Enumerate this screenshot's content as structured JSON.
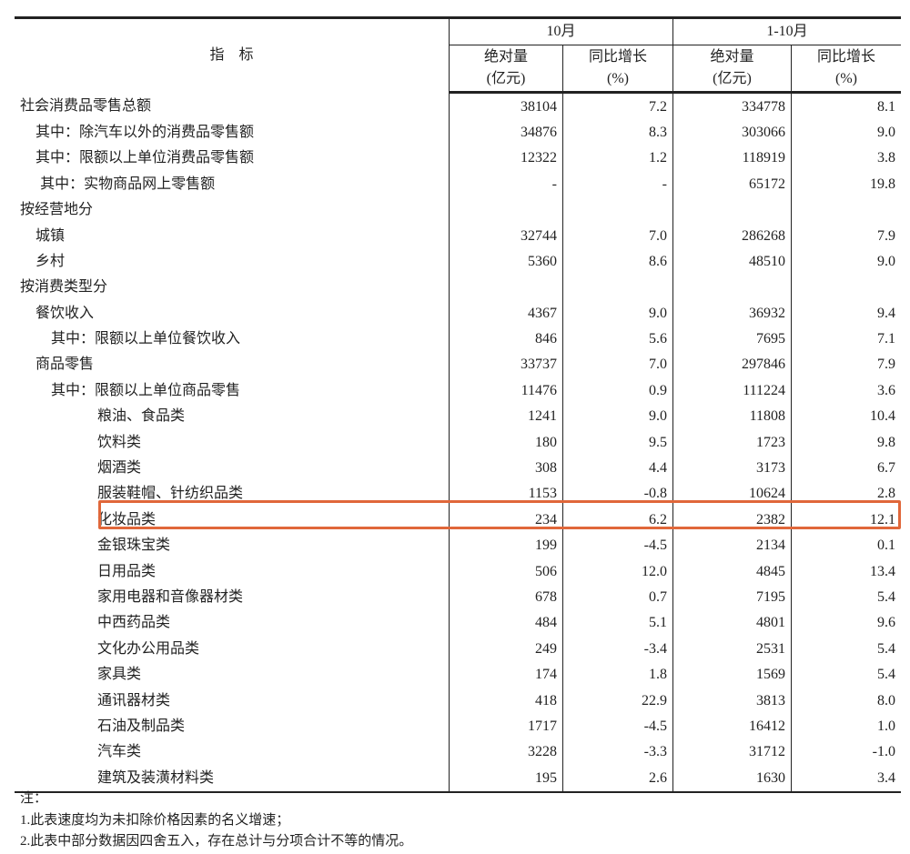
{
  "header": {
    "indicator": "指　标",
    "period1": "10月",
    "period2": "1-10月",
    "abs": "绝对量",
    "abs_unit": "(亿元)",
    "yoy": "同比增长",
    "yoy_unit": "(%)"
  },
  "highlight_color": "#e0673a",
  "rows": [
    {
      "label": "社会消费品零售总额",
      "indent": 0,
      "v": [
        "38104",
        "7.2",
        "334778",
        "8.1"
      ]
    },
    {
      "label": "其中：除汽车以外的消费品零售额",
      "indent": 1,
      "v": [
        "34876",
        "8.3",
        "303066",
        "9.0"
      ]
    },
    {
      "label": "其中：限额以上单位消费品零售额",
      "indent": 1,
      "v": [
        "12322",
        "1.2",
        "118919",
        "3.8"
      ]
    },
    {
      "label": "其中：实物商品网上零售额",
      "indent": 1.3,
      "v": [
        "-",
        "-",
        "65172",
        "19.8"
      ]
    },
    {
      "label": "按经营地分",
      "indent": 0,
      "v": [
        "",
        "",
        "",
        ""
      ]
    },
    {
      "label": "城镇",
      "indent": 1,
      "v": [
        "32744",
        "7.0",
        "286268",
        "7.9"
      ]
    },
    {
      "label": "乡村",
      "indent": 1,
      "v": [
        "5360",
        "8.6",
        "48510",
        "9.0"
      ]
    },
    {
      "label": "按消费类型分",
      "indent": 0,
      "v": [
        "",
        "",
        "",
        ""
      ]
    },
    {
      "label": "餐饮收入",
      "indent": 1,
      "v": [
        "4367",
        "9.0",
        "36932",
        "9.4"
      ]
    },
    {
      "label": "其中：限额以上单位餐饮收入",
      "indent": 2,
      "v": [
        "846",
        "5.6",
        "7695",
        "7.1"
      ]
    },
    {
      "label": "商品零售",
      "indent": 1,
      "v": [
        "33737",
        "7.0",
        "297846",
        "7.9"
      ]
    },
    {
      "label": "其中：限额以上单位商品零售",
      "indent": 2,
      "v": [
        "11476",
        "0.9",
        "111224",
        "3.6"
      ]
    },
    {
      "label": "粮油、食品类",
      "indent": 5,
      "v": [
        "1241",
        "9.0",
        "11808",
        "10.4"
      ]
    },
    {
      "label": "饮料类",
      "indent": 5,
      "v": [
        "180",
        "9.5",
        "1723",
        "9.8"
      ]
    },
    {
      "label": "烟酒类",
      "indent": 5,
      "v": [
        "308",
        "4.4",
        "3173",
        "6.7"
      ]
    },
    {
      "label": "服装鞋帽、针纺织品类",
      "indent": 5,
      "v": [
        "1153",
        "-0.8",
        "10624",
        "2.8"
      ]
    },
    {
      "label": "化妆品类",
      "indent": 5,
      "highlighted": true,
      "v": [
        "234",
        "6.2",
        "2382",
        "12.1"
      ]
    },
    {
      "label": "金银珠宝类",
      "indent": 5,
      "v": [
        "199",
        "-4.5",
        "2134",
        "0.1"
      ]
    },
    {
      "label": "日用品类",
      "indent": 5,
      "v": [
        "506",
        "12.0",
        "4845",
        "13.4"
      ]
    },
    {
      "label": "家用电器和音像器材类",
      "indent": 5,
      "v": [
        "678",
        "0.7",
        "7195",
        "5.4"
      ]
    },
    {
      "label": "中西药品类",
      "indent": 5,
      "v": [
        "484",
        "5.1",
        "4801",
        "9.6"
      ]
    },
    {
      "label": "文化办公用品类",
      "indent": 5,
      "v": [
        "249",
        "-3.4",
        "2531",
        "5.4"
      ]
    },
    {
      "label": "家具类",
      "indent": 5,
      "v": [
        "174",
        "1.8",
        "1569",
        "5.4"
      ]
    },
    {
      "label": "通讯器材类",
      "indent": 5,
      "v": [
        "418",
        "22.9",
        "3813",
        "8.0"
      ]
    },
    {
      "label": "石油及制品类",
      "indent": 5,
      "v": [
        "1717",
        "-4.5",
        "16412",
        "1.0"
      ]
    },
    {
      "label": "汽车类",
      "indent": 5,
      "v": [
        "3228",
        "-3.3",
        "31712",
        "-1.0"
      ]
    },
    {
      "label": "建筑及装潢材料类",
      "indent": 5,
      "v": [
        "195",
        "2.6",
        "1630",
        "3.4"
      ]
    }
  ],
  "notes": [
    "注：",
    "1.此表速度均为未扣除价格因素的名义增速；",
    "2.此表中部分数据因四舍五入，存在总计与分项合计不等的情况。"
  ]
}
